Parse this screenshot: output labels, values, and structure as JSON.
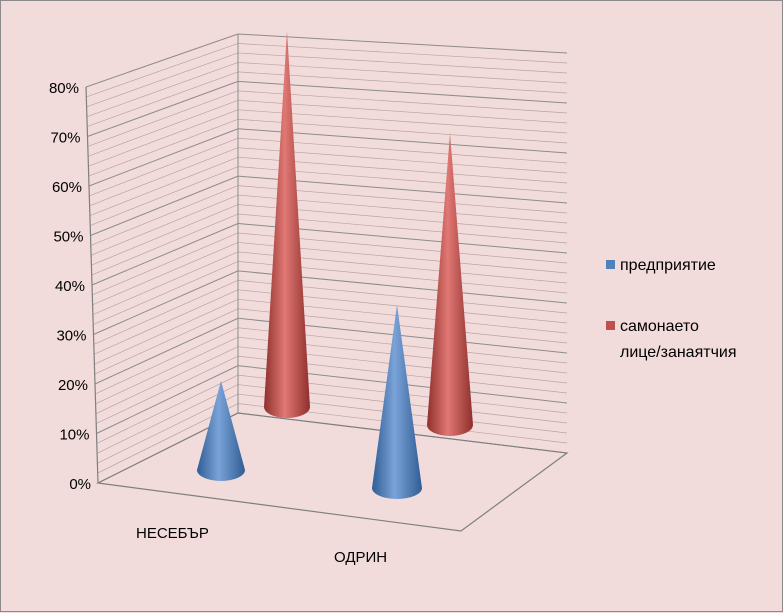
{
  "chart_data": {
    "type": "3d-cone",
    "title": "",
    "xlabel": "",
    "ylabel": "",
    "ylim": [
      0,
      80
    ],
    "y_ticks": [
      "0%",
      "10%",
      "20%",
      "30%",
      "40%",
      "50%",
      "60%",
      "70%",
      "80%"
    ],
    "categories": [
      "НЕСЕБЪР",
      "ОДРИН"
    ],
    "series": [
      {
        "name": "предприятие",
        "values": [
          18,
          37
        ],
        "color": "#4f81bd"
      },
      {
        "name": "самонаето лице/занаятчия",
        "values": [
          76,
          59
        ],
        "color": "#c0504d"
      }
    ],
    "grid": true,
    "legend_position": "right"
  },
  "legend": {
    "items": [
      {
        "label_lines": [
          "предприятие"
        ],
        "color": "#4f81bd"
      },
      {
        "label_lines": [
          "самонаето",
          "лице/занаятчия"
        ],
        "color": "#c0504d"
      }
    ]
  }
}
